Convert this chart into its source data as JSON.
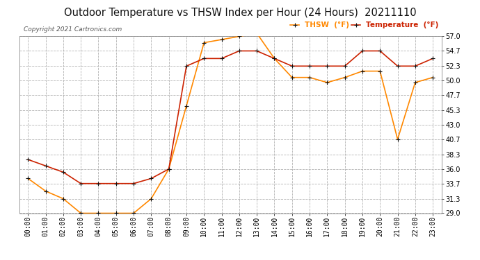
{
  "title": "Outdoor Temperature vs THSW Index per Hour (24 Hours)  20211110",
  "copyright": "Copyright 2021 Cartronics.com",
  "hours": [
    "00:00",
    "01:00",
    "02:00",
    "03:00",
    "04:00",
    "05:00",
    "06:00",
    "07:00",
    "08:00",
    "09:00",
    "10:00",
    "11:00",
    "12:00",
    "13:00",
    "14:00",
    "15:00",
    "16:00",
    "17:00",
    "18:00",
    "19:00",
    "20:00",
    "21:00",
    "22:00",
    "23:00"
  ],
  "temperature": [
    37.5,
    36.5,
    35.5,
    33.7,
    33.7,
    33.7,
    33.7,
    34.5,
    36.0,
    52.3,
    53.5,
    53.5,
    54.7,
    54.7,
    53.5,
    52.3,
    52.3,
    52.3,
    52.3,
    54.7,
    54.7,
    52.3,
    52.3,
    53.5
  ],
  "thsw": [
    34.5,
    32.5,
    31.3,
    29.0,
    29.0,
    29.0,
    29.0,
    31.3,
    36.0,
    46.0,
    56.0,
    56.5,
    57.0,
    57.5,
    53.5,
    50.5,
    50.5,
    49.7,
    50.5,
    51.5,
    51.5,
    40.7,
    49.7,
    50.5
  ],
  "temp_color": "#cc2200",
  "thsw_color": "#ff8800",
  "marker_color": "#111111",
  "background_color": "#ffffff",
  "grid_color": "#aaaaaa",
  "ylim": [
    29.0,
    57.0
  ],
  "yticks": [
    29.0,
    31.3,
    33.7,
    36.0,
    38.3,
    40.7,
    43.0,
    45.3,
    47.7,
    50.0,
    52.3,
    54.7,
    57.0
  ],
  "legend_thsw": "THSW  (°F)",
  "legend_temp": "Temperature  (°F)",
  "title_fontsize": 10.5,
  "label_fontsize": 7.0,
  "copyright_fontsize": 6.5
}
